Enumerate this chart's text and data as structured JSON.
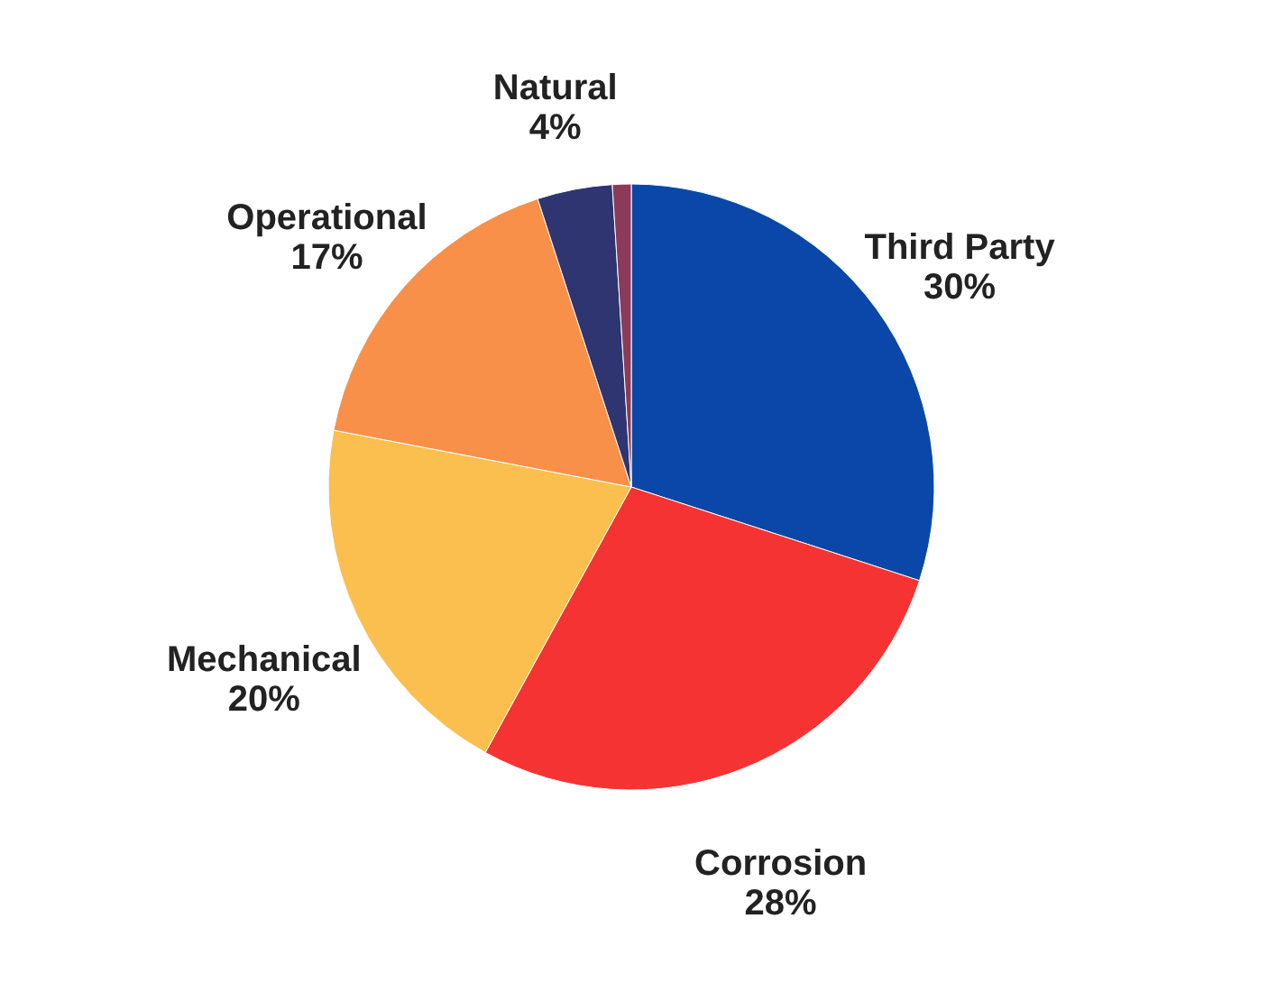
{
  "chart_data": {
    "type": "pie",
    "categories": [
      "Third Party",
      "Corrosion",
      "Mechanical",
      "Operational",
      "Natural",
      null
    ],
    "values": [
      30,
      28,
      20,
      17,
      4,
      1
    ],
    "value_labels": [
      "30%",
      "28%",
      "20%",
      "17%",
      "4%",
      null
    ],
    "colors": [
      "#0a47a8",
      "#f53333",
      "#fbbf4f",
      "#f9904a",
      "#2e3570",
      "#8b3a5a"
    ]
  }
}
